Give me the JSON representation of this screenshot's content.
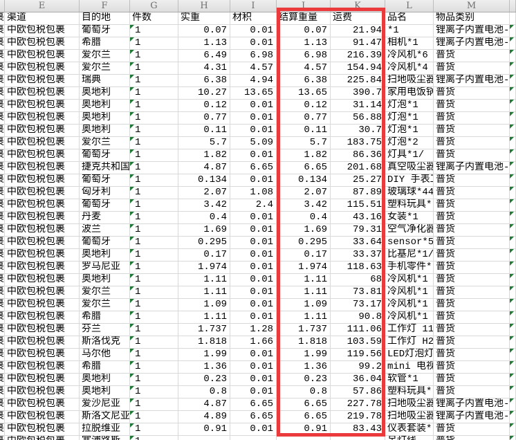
{
  "sheet": {
    "column_letters": [
      "E",
      "F",
      "G",
      "H",
      "I",
      "J",
      "K",
      "L",
      "M"
    ],
    "headers": {
      "e": "渠道",
      "f": "目的地",
      "g": "件数",
      "h": "实重",
      "i": "材积",
      "j": "结算重量",
      "k": "运费",
      "l": "品名",
      "m": "物品类别"
    },
    "d_clip": "包裹",
    "colors": {
      "annotation_red": "#ea3a3c",
      "flag_green": "#1f7a33"
    },
    "rows": [
      {
        "e": "中欧包税包裹",
        "f": "葡萄牙",
        "g": "1",
        "h": "0.07",
        "i": "0.01",
        "j": "0.07",
        "k": "21.94",
        "l": "*1",
        "m": "锂离子内置电池-"
      },
      {
        "e": "中欧包税包裹",
        "f": "希腊",
        "g": "1",
        "h": "1.13",
        "i": "0.01",
        "j": "1.13",
        "k": "91.47",
        "l": "相机*1",
        "m": "锂离子内置电池-"
      },
      {
        "e": "中欧包税包裹",
        "f": "爱尔兰",
        "g": "1",
        "h": "6.49",
        "i": "6.98",
        "j": "6.98",
        "k": "216.39",
        "l": "冷风机*6",
        "m": "普货"
      },
      {
        "e": "中欧包税包裹",
        "f": "爱尔兰",
        "g": "1",
        "h": "4.31",
        "i": "4.57",
        "j": "4.57",
        "k": "154.94",
        "l": "冷风机*4",
        "m": "普货"
      },
      {
        "e": "中欧包税包裹",
        "f": "瑞典",
        "g": "1",
        "h": "6.38",
        "i": "4.94",
        "j": "6.38",
        "k": "225.84",
        "l": "扫地吸尘器",
        "m": "锂离子内置电池-"
      },
      {
        "e": "中欧包税包裹",
        "f": "奥地利",
        "g": "1",
        "h": "10.27",
        "i": "13.65",
        "j": "13.65",
        "k": "390.7",
        "l": "家用电饭锅",
        "m": "普货"
      },
      {
        "e": "中欧包税包裹",
        "f": "奥地利",
        "g": "1",
        "h": "0.12",
        "i": "0.01",
        "j": "0.12",
        "k": "31.14",
        "l": "灯泡*1",
        "m": "普货"
      },
      {
        "e": "中欧包税包裹",
        "f": "奥地利",
        "g": "1",
        "h": "0.77",
        "i": "0.01",
        "j": "0.77",
        "k": "56.88",
        "l": "灯泡*1",
        "m": "普货"
      },
      {
        "e": "中欧包税包裹",
        "f": "奥地利",
        "g": "1",
        "h": "0.11",
        "i": "0.01",
        "j": "0.11",
        "k": "30.7",
        "l": "灯泡*1",
        "m": "普货"
      },
      {
        "e": "中欧包税包裹",
        "f": "爱尔兰",
        "g": "1",
        "h": "5.7",
        "i": "5.09",
        "j": "5.7",
        "k": "183.75",
        "l": "灯泡*2",
        "m": "普货"
      },
      {
        "e": "中欧包税包裹",
        "f": "葡萄牙",
        "g": "1",
        "h": "1.82",
        "i": "0.01",
        "j": "1.82",
        "k": "86.36",
        "l": "灯具*1/",
        "m": "普货"
      },
      {
        "e": "中欧包税包裹",
        "f": "捷克共和国",
        "g": "1",
        "h": "4.87",
        "i": "6.65",
        "j": "6.65",
        "k": "201.68",
        "l": "真空吸尘器",
        "m": "锂离子内置电池-"
      },
      {
        "e": "中欧包税包裹",
        "f": "葡萄牙",
        "g": "1",
        "h": "0.134",
        "i": "0.01",
        "j": "0.134",
        "k": "25.27",
        "l": "DIY 手表工",
        "m": "普货"
      },
      {
        "e": "中欧包税包裹",
        "f": "匈牙利",
        "g": "1",
        "h": "2.07",
        "i": "1.08",
        "j": "2.07",
        "k": "87.89",
        "l": "玻璃球*44",
        "m": "普货"
      },
      {
        "e": "中欧包税包裹",
        "f": "葡萄牙",
        "g": "1",
        "h": "3.42",
        "i": "2.4",
        "j": "3.42",
        "k": "115.51",
        "l": "塑料玩具*",
        "m": "普货"
      },
      {
        "e": "中欧包税包裹",
        "f": "丹麦",
        "g": "1",
        "h": "0.4",
        "i": "0.01",
        "j": "0.4",
        "k": "43.16",
        "l": "女装*1",
        "m": "普货"
      },
      {
        "e": "中欧包税包裹",
        "f": "波兰",
        "g": "1",
        "h": "1.69",
        "i": "0.01",
        "j": "1.69",
        "k": "79.31",
        "l": "空气净化器",
        "m": "普货"
      },
      {
        "e": "中欧包税包裹",
        "f": "葡萄牙",
        "g": "1",
        "h": "0.295",
        "i": "0.01",
        "j": "0.295",
        "k": "33.64",
        "l": "sensor*5",
        "m": "普货"
      },
      {
        "e": "中欧包税包裹",
        "f": "奥地利",
        "g": "1",
        "h": "0.17",
        "i": "0.01",
        "j": "0.17",
        "k": "33.37",
        "l": "比基尼*1/",
        "m": "普货"
      },
      {
        "e": "中欧包税包裹",
        "f": "罗马尼亚",
        "g": "1",
        "h": "1.974",
        "i": "0.01",
        "j": "1.974",
        "k": "118.63",
        "l": "手机零件*",
        "m": "普货"
      },
      {
        "e": "中欧包税包裹",
        "f": "奥地利",
        "g": "1",
        "h": "1.11",
        "i": "0.01",
        "j": "1.11",
        "k": "68",
        "l": "冷风机*1",
        "m": "普货"
      },
      {
        "e": "中欧包税包裹",
        "f": "爱尔兰",
        "g": "1",
        "h": "1.11",
        "i": "0.01",
        "j": "1.11",
        "k": "73.81",
        "l": "冷风机*1",
        "m": "普货"
      },
      {
        "e": "中欧包税包裹",
        "f": "爱尔兰",
        "g": "1",
        "h": "1.09",
        "i": "0.01",
        "j": "1.09",
        "k": "73.17",
        "l": "冷风机*1",
        "m": "普货"
      },
      {
        "e": "中欧包税包裹",
        "f": "希腊",
        "g": "1",
        "h": "1.11",
        "i": "0.01",
        "j": "1.11",
        "k": "90.8",
        "l": "冷风机*1",
        "m": "普货"
      },
      {
        "e": "中欧包税包裹",
        "f": "芬兰",
        "g": "1",
        "h": "1.737",
        "i": "1.28",
        "j": "1.737",
        "k": "111.06",
        "l": "工作灯 11",
        "m": "普货"
      },
      {
        "e": "中欧包税包裹",
        "f": "斯洛伐克",
        "g": "1",
        "h": "1.818",
        "i": "1.66",
        "j": "1.818",
        "k": "103.59",
        "l": "工作灯 H2",
        "m": "普货"
      },
      {
        "e": "中欧包税包裹",
        "f": "马尔他",
        "g": "1",
        "h": "1.99",
        "i": "0.01",
        "j": "1.99",
        "k": "119.56",
        "l": "LED灯泡灯",
        "m": "普货"
      },
      {
        "e": "中欧包税包裹",
        "f": "希腊",
        "g": "1",
        "h": "1.36",
        "i": "0.01",
        "j": "1.36",
        "k": "99.2",
        "l": "mini 电视盒",
        "m": "普货"
      },
      {
        "e": "中欧包税包裹",
        "f": "奥地利",
        "g": "1",
        "h": "0.23",
        "i": "0.01",
        "j": "0.23",
        "k": "36.04",
        "l": "软管*1",
        "m": "普货"
      },
      {
        "e": "中欧包税包裹",
        "f": "奥地利",
        "g": "1",
        "h": "0.8",
        "i": "0.01",
        "j": "0.8",
        "k": "57.86",
        "l": "塑料玩具*",
        "m": "普货"
      },
      {
        "e": "中欧包税包裹",
        "f": "爱沙尼亚",
        "g": "1",
        "h": "4.87",
        "i": "6.65",
        "j": "6.65",
        "k": "227.78",
        "l": "扫地吸尘器",
        "m": "锂离子内置电池-"
      },
      {
        "e": "中欧包税包裹",
        "f": "斯洛文尼亚",
        "g": "1",
        "h": "4.89",
        "i": "6.65",
        "j": "6.65",
        "k": "219.78",
        "l": "扫地吸尘器",
        "m": "锂离子内置电池-"
      },
      {
        "e": "中欧包税包裹",
        "f": "拉脱维亚",
        "g": "1",
        "h": "0.91",
        "i": "0.01",
        "j": "0.91",
        "k": "83.43",
        "l": "仪表套装*",
        "m": "普货"
      },
      {
        "e": "中欧包税包裹",
        "f": "塞浦路斯",
        "g": "1",
        "h": "",
        "i": "",
        "j": "",
        "k": "",
        "l": "吊灯线",
        "m": "普货"
      }
    ]
  }
}
